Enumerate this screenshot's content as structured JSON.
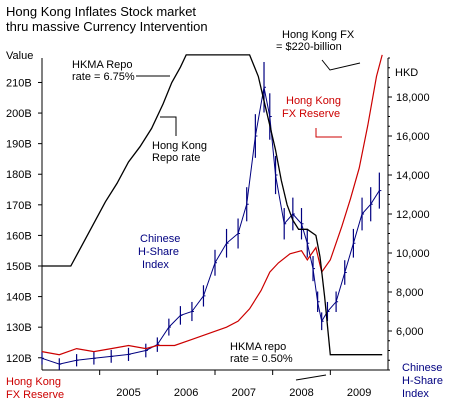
{
  "chart_data": {
    "type": "line",
    "title_lines": [
      "Hong Kong Inflates Stock market",
      "thru massive Currency Intervention"
    ],
    "left_axis": {
      "label": "Value",
      "ticks": [
        "120B",
        "130B",
        "140B",
        "150B",
        "160B",
        "170B",
        "180B",
        "190B",
        "200B",
        "210B"
      ],
      "range": [
        116,
        218
      ],
      "unit": "HK$ billion"
    },
    "right_axis": {
      "label": "HKD",
      "ticks": [
        "6,000",
        "8,000",
        "10,000",
        "12,000",
        "14,000",
        "16,000",
        "18,000"
      ],
      "range": [
        4000,
        20000
      ]
    },
    "x_axis": {
      "ticks": [
        "2005",
        "2006",
        "2007",
        "2008",
        "2009"
      ],
      "range": [
        2004.0,
        2010.0
      ]
    },
    "colors": {
      "repo": "#000000",
      "fx_reserve": "#cc0000",
      "h_share": "#000080",
      "fx_label": "#cc0000",
      "h_share_label": "#000080"
    },
    "series": [
      {
        "name": "Hong Kong Repo rate",
        "axis": "left",
        "color": "#000000",
        "x": [
          2004.0,
          2004.5,
          2004.7,
          2004.9,
          2005.1,
          2005.3,
          2005.5,
          2005.7,
          2005.9,
          2006.1,
          2006.25,
          2006.4,
          2006.5,
          2006.6,
          2007.0,
          2007.5,
          2007.6,
          2007.75,
          2007.85,
          2007.95,
          2008.05,
          2008.15,
          2008.25,
          2008.35,
          2008.45,
          2008.6,
          2008.75,
          2008.82,
          2008.9,
          2009.0,
          2009.9
        ],
        "y": [
          150,
          150,
          157,
          164,
          171,
          177,
          184,
          189,
          195,
          203,
          210,
          215,
          219,
          219,
          219,
          219,
          219,
          212,
          204,
          196,
          188,
          178,
          170,
          165,
          162,
          162,
          160,
          153,
          140,
          121,
          121
        ]
      },
      {
        "name": "Hong Kong FX Reserve",
        "axis": "left",
        "color": "#cc0000",
        "x": [
          2004.0,
          2004.3,
          2004.6,
          2004.9,
          2005.2,
          2005.5,
          2005.8,
          2006.0,
          2006.3,
          2006.6,
          2006.9,
          2007.2,
          2007.4,
          2007.6,
          2007.8,
          2007.95,
          2008.1,
          2008.3,
          2008.5,
          2008.6,
          2008.75,
          2008.85,
          2009.0,
          2009.2,
          2009.35,
          2009.5,
          2009.65,
          2009.8,
          2009.9
        ],
        "y": [
          122,
          121,
          123,
          122,
          123,
          124,
          123,
          124,
          124,
          126,
          128,
          130,
          132,
          136,
          142,
          148,
          151,
          154,
          155,
          152,
          156,
          148,
          152,
          163,
          172,
          182,
          196,
          212,
          219
        ]
      },
      {
        "name": "Chinese H-Share Index",
        "axis": "right",
        "color": "#000080",
        "x": [
          2004.0,
          2004.3,
          2004.6,
          2004.9,
          2005.2,
          2005.5,
          2005.8,
          2006.0,
          2006.2,
          2006.4,
          2006.6,
          2006.8,
          2007.0,
          2007.2,
          2007.4,
          2007.55,
          2007.7,
          2007.85,
          2007.95,
          2008.05,
          2008.2,
          2008.35,
          2008.5,
          2008.6,
          2008.7,
          2008.78,
          2008.85,
          2008.95,
          2009.1,
          2009.25,
          2009.4,
          2009.55,
          2009.7,
          2009.85
        ],
        "y": [
          4600,
          4300,
          4500,
          4600,
          4700,
          4800,
          5000,
          5300,
          6200,
          6800,
          7000,
          7800,
          9500,
          10500,
          11000,
          12500,
          16000,
          18500,
          17000,
          14000,
          11500,
          12000,
          11500,
          10500,
          9200,
          7500,
          6500,
          7000,
          7500,
          9000,
          10500,
          12000,
          12500,
          13200
        ]
      }
    ],
    "annotations": [
      {
        "id": "hkma_repo_high",
        "lines": [
          "HKMA Repo",
          "rate = 6.75%"
        ]
      },
      {
        "id": "hk_repo_rate",
        "lines": [
          "Hong Kong",
          "Repo rate"
        ]
      },
      {
        "id": "hk_fx_total",
        "lines": [
          "Hong Kong FX",
          "= $220-billion"
        ]
      },
      {
        "id": "hk_fx_reserve",
        "lines": [
          "Hong Kong",
          "FX Reserve"
        ]
      },
      {
        "id": "chinese_hshare",
        "lines": [
          "Chinese",
          "H-Share",
          "Index"
        ]
      },
      {
        "id": "hkma_repo_low",
        "lines": [
          "HKMA repo",
          "rate = 0.50%"
        ]
      },
      {
        "id": "legend_fx_reserve",
        "lines": [
          "Hong Kong",
          "FX Reserve"
        ]
      },
      {
        "id": "legend_hshare",
        "lines": [
          "Chinese",
          "H-Share",
          "Index"
        ]
      }
    ]
  }
}
